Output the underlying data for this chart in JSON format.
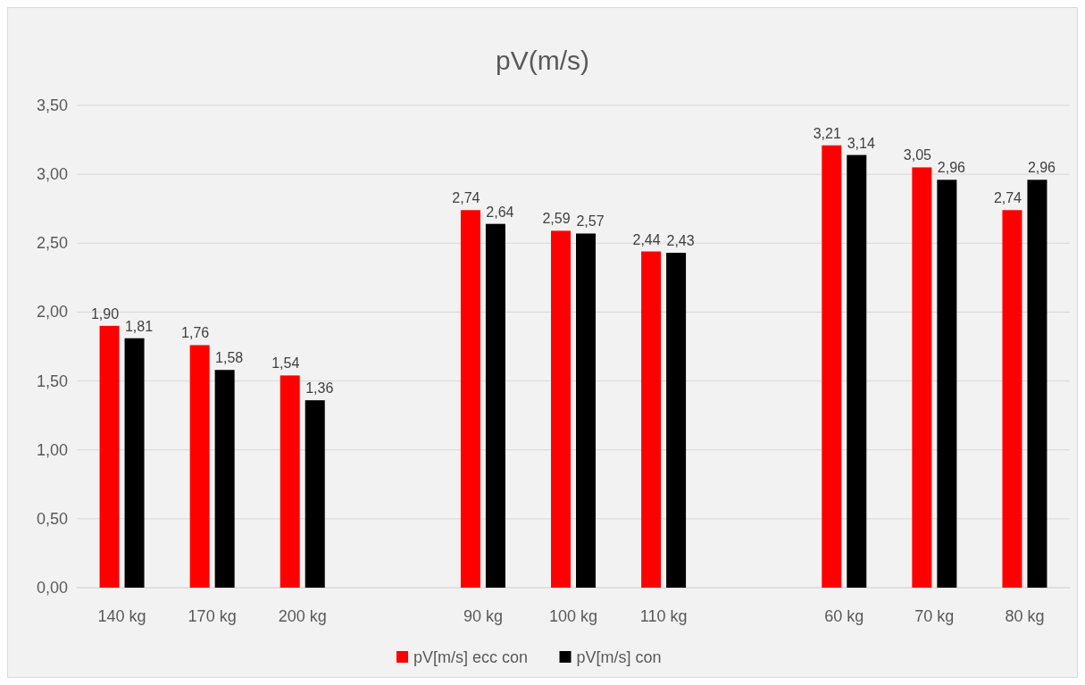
{
  "chart_data": {
    "type": "bar",
    "title": "pV(m/s)",
    "categories": [
      "140 kg",
      "170 kg",
      "200 kg",
      null,
      "90 kg",
      "100 kg",
      "110 kg",
      null,
      "60 kg",
      "70 kg",
      "80 kg"
    ],
    "series": [
      {
        "name": "pV[m/s] ecc con",
        "color": "#ff0000",
        "values": [
          1.9,
          1.76,
          1.54,
          null,
          2.74,
          2.59,
          2.44,
          null,
          3.21,
          3.05,
          2.74
        ],
        "value_labels": [
          "1,90",
          "1,76",
          "1,54",
          null,
          "2,74",
          "2,59",
          "2,44",
          null,
          "3,21",
          "3,05",
          "2,74"
        ]
      },
      {
        "name": "pV[m/s] con",
        "color": "#000000",
        "values": [
          1.81,
          1.58,
          1.36,
          null,
          2.64,
          2.57,
          2.43,
          null,
          3.14,
          2.96,
          2.96
        ],
        "value_labels": [
          "1,81",
          "1,58",
          "1,36",
          null,
          "2,64",
          "2,57",
          "2,43",
          null,
          "3,14",
          "2,96",
          "2,96"
        ]
      }
    ],
    "ylim": [
      0,
      3.5
    ],
    "yticks": [
      {
        "value": 0,
        "label": "0,00"
      },
      {
        "value": 0.5,
        "label": "0,50"
      },
      {
        "value": 1,
        "label": "1,00"
      },
      {
        "value": 1.5,
        "label": "1,50"
      },
      {
        "value": 2,
        "label": "2,00"
      },
      {
        "value": 2.5,
        "label": "2,50"
      },
      {
        "value": 3,
        "label": "3,00"
      },
      {
        "value": 3.5,
        "label": "3,50"
      }
    ],
    "grid": "y",
    "legend": "bottom"
  }
}
